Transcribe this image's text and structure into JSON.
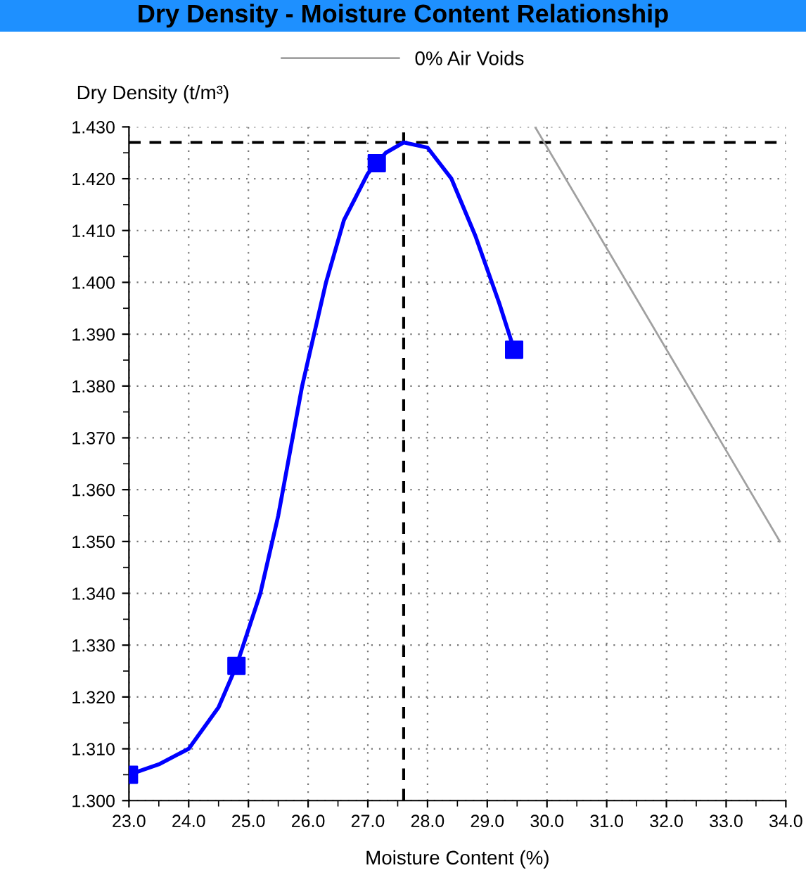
{
  "chart_data": {
    "type": "line",
    "title": "Dry Density - Moisture Content Relationship",
    "xlabel": "Moisture Content (%)",
    "ylabel": "Dry Density (t/m³)",
    "series": [
      {
        "color": "#0000ff",
        "marker": "none",
        "x": [
          23.0,
          23.5,
          24.0,
          24.5,
          24.8,
          25.2,
          25.5,
          25.9,
          26.3,
          26.6,
          27.0,
          27.3,
          27.6,
          28.0,
          28.4,
          28.8,
          29.2,
          29.45
        ],
        "values": [
          1.305,
          1.307,
          1.31,
          1.318,
          1.326,
          1.34,
          1.355,
          1.38,
          1.4,
          1.412,
          1.421,
          1.425,
          1.427,
          1.426,
          1.42,
          1.409,
          1.396,
          1.387
        ]
      },
      {
        "type": "scatter",
        "color": "#0000ff",
        "marker": "square",
        "x": [
          23.0,
          24.8,
          27.15,
          29.45
        ],
        "values": [
          1.305,
          1.326,
          1.423,
          1.387
        ]
      },
      {
        "name": "0% Air Voids",
        "color": "#a0a0a0",
        "marker": "none",
        "x": [
          29.8,
          33.9
        ],
        "values": [
          1.43,
          1.35
        ]
      }
    ],
    "ref_lines": [
      {
        "axis": "x",
        "value": 27.6,
        "color": "#000000",
        "line_style": "dashed"
      },
      {
        "axis": "y",
        "value": 1.427,
        "color": "#000000",
        "line_style": "dashed"
      }
    ],
    "xlim": [
      23.0,
      34.0
    ],
    "ylim": [
      1.3,
      1.43
    ],
    "xticks": [
      {
        "value": 23.0,
        "label": "23.0"
      },
      {
        "value": 23.5,
        "label": null
      },
      {
        "value": 24.0,
        "label": "24.0"
      },
      {
        "value": 24.5,
        "label": null
      },
      {
        "value": 25.0,
        "label": "25.0"
      },
      {
        "value": 25.5,
        "label": null
      },
      {
        "value": 26.0,
        "label": "26.0"
      },
      {
        "value": 26.5,
        "label": null
      },
      {
        "value": 27.0,
        "label": "27.0"
      },
      {
        "value": 27.5,
        "label": null
      },
      {
        "value": 28.0,
        "label": "28.0"
      },
      {
        "value": 28.5,
        "label": null
      },
      {
        "value": 29.0,
        "label": "29.0"
      },
      {
        "value": 29.5,
        "label": null
      },
      {
        "value": 30.0,
        "label": "30.0"
      },
      {
        "value": 30.5,
        "label": null
      },
      {
        "value": 31.0,
        "label": "31.0"
      },
      {
        "value": 31.5,
        "label": null
      },
      {
        "value": 32.0,
        "label": "32.0"
      },
      {
        "value": 32.5,
        "label": null
      },
      {
        "value": 33.0,
        "label": "33.0"
      },
      {
        "value": 33.5,
        "label": null
      },
      {
        "value": 34.0,
        "label": "34.0"
      }
    ],
    "yticks": [
      {
        "value": 1.3,
        "label": "1.300"
      },
      {
        "value": 1.305,
        "label": null
      },
      {
        "value": 1.31,
        "label": "1.310"
      },
      {
        "value": 1.315,
        "label": null
      },
      {
        "value": 1.32,
        "label": "1.320"
      },
      {
        "value": 1.325,
        "label": null
      },
      {
        "value": 1.33,
        "label": "1.330"
      },
      {
        "value": 1.335,
        "label": null
      },
      {
        "value": 1.34,
        "label": "1.340"
      },
      {
        "value": 1.345,
        "label": null
      },
      {
        "value": 1.35,
        "label": "1.350"
      },
      {
        "value": 1.355,
        "label": null
      },
      {
        "value": 1.36,
        "label": "1.360"
      },
      {
        "value": 1.365,
        "label": null
      },
      {
        "value": 1.37,
        "label": "1.370"
      },
      {
        "value": 1.375,
        "label": null
      },
      {
        "value": 1.38,
        "label": "1.380"
      },
      {
        "value": 1.385,
        "label": null
      },
      {
        "value": 1.39,
        "label": "1.390"
      },
      {
        "value": 1.395,
        "label": null
      },
      {
        "value": 1.4,
        "label": "1.400"
      },
      {
        "value": 1.405,
        "label": null
      },
      {
        "value": 1.41,
        "label": "1.410"
      },
      {
        "value": 1.415,
        "label": null
      },
      {
        "value": 1.42,
        "label": "1.420"
      },
      {
        "value": 1.425,
        "label": null
      },
      {
        "value": 1.43,
        "label": "1.430"
      }
    ],
    "grid": true,
    "legend": "top"
  }
}
